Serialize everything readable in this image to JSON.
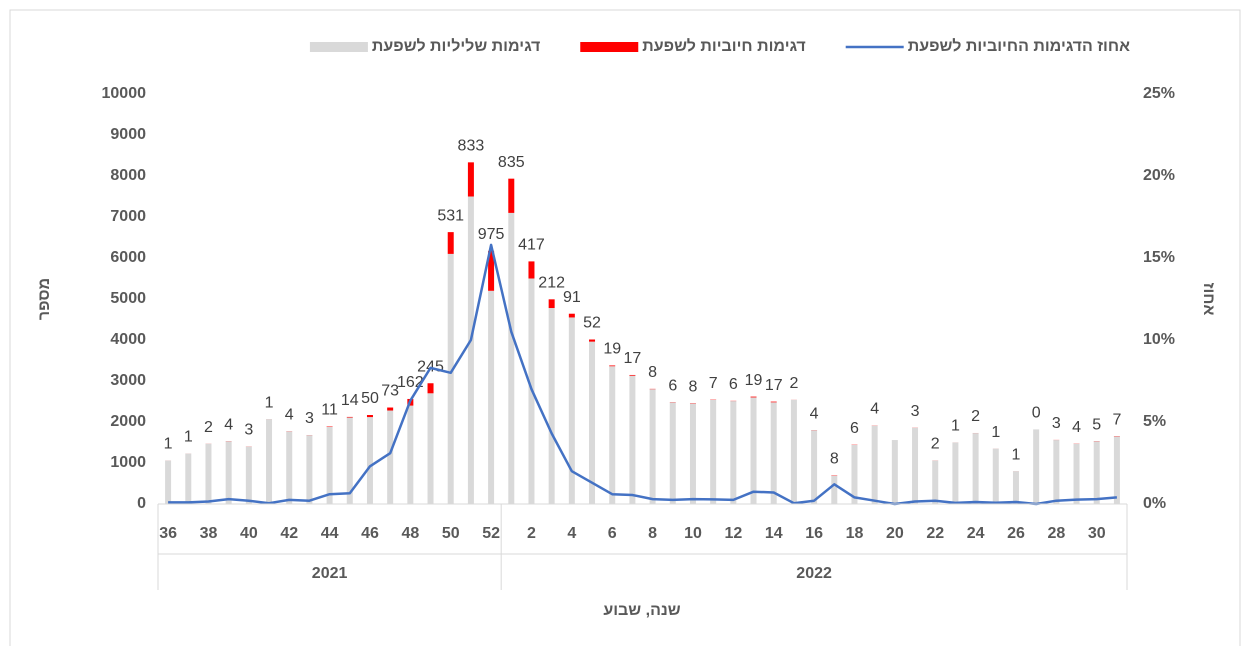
{
  "chart_data": {
    "type": "bar",
    "stacked": true,
    "x_label": "שנה, שבוע",
    "y_label": "מספר",
    "y2_label": "אחוז",
    "categories": [
      36,
      null,
      38,
      null,
      40,
      null,
      42,
      null,
      44,
      null,
      46,
      null,
      48,
      null,
      50,
      null,
      52,
      null,
      2,
      null,
      4,
      null,
      6,
      null,
      8,
      null,
      10,
      null,
      12,
      null,
      14,
      null,
      16,
      null,
      18,
      null,
      20,
      null,
      22,
      null,
      24,
      null,
      26,
      null,
      28,
      null,
      30,
      null
    ],
    "groups": [
      {
        "label": "2021",
        "count": 17
      },
      {
        "label": "2022",
        "count": 31
      }
    ],
    "series": [
      {
        "name": "דגימות שליליות לשפעת",
        "type": "bar",
        "color": "#d9d9d9",
        "values": [
          1060,
          1230,
          1470,
          1530,
          1400,
          2070,
          1770,
          1680,
          1880,
          2110,
          2120,
          2280,
          2400,
          2700,
          6100,
          7500,
          5200,
          7100,
          5500,
          4780,
          4550,
          3960,
          3360,
          3130,
          2800,
          2480,
          2450,
          2540,
          2510,
          2600,
          2480,
          2540,
          1800,
          690,
          1440,
          1910,
          1560,
          1860,
          1060,
          1500,
          1730,
          1350,
          800,
          1820,
          1560,
          1470,
          1530,
          1650
        ]
      },
      {
        "name": "דגימות חיוביות לשפעת",
        "type": "bar",
        "color": "#ff0000",
        "data_labels": true,
        "values": [
          1,
          1,
          2,
          4,
          3,
          1,
          4,
          3,
          11,
          14,
          50,
          73,
          162,
          245,
          531,
          833,
          975,
          835,
          417,
          212,
          91,
          52,
          19,
          17,
          8,
          6,
          8,
          7,
          6,
          19,
          17,
          2,
          4,
          8,
          6,
          4,
          null,
          3,
          2,
          1,
          2,
          1,
          1,
          0,
          3,
          4,
          5,
          7
        ]
      },
      {
        "name": "אחוז הדגימות החיוביות לשפעת",
        "type": "line",
        "axis": "y2",
        "color": "#4472c4",
        "values": [
          0.1,
          0.1,
          0.15,
          0.3,
          0.2,
          0.05,
          0.25,
          0.2,
          0.6,
          0.65,
          2.3,
          3.1,
          6.3,
          8.3,
          8.0,
          10.0,
          15.8,
          10.5,
          7.0,
          4.3,
          2.0,
          1.3,
          0.6,
          0.55,
          0.3,
          0.25,
          0.3,
          0.28,
          0.25,
          0.75,
          0.7,
          0.05,
          0.2,
          1.2,
          0.4,
          0.2,
          0,
          0.15,
          0.2,
          0.07,
          0.12,
          0.08,
          0.12,
          0,
          0.2,
          0.27,
          0.3,
          0.4
        ]
      }
    ],
    "ylim": [
      0,
      10000
    ],
    "yticks": [
      0,
      1000,
      2000,
      3000,
      4000,
      5000,
      6000,
      7000,
      8000,
      9000,
      10000
    ],
    "y2lim": [
      0,
      25
    ],
    "y2ticks": [
      {
        "value": 0,
        "label": "0%"
      },
      {
        "value": 5,
        "label": "5%"
      },
      {
        "value": 10,
        "label": "10%"
      },
      {
        "value": 15,
        "label": "15%"
      },
      {
        "value": 20,
        "label": "20%"
      },
      {
        "value": 25,
        "label": "25%"
      }
    ],
    "grid": false,
    "legend": "top"
  }
}
